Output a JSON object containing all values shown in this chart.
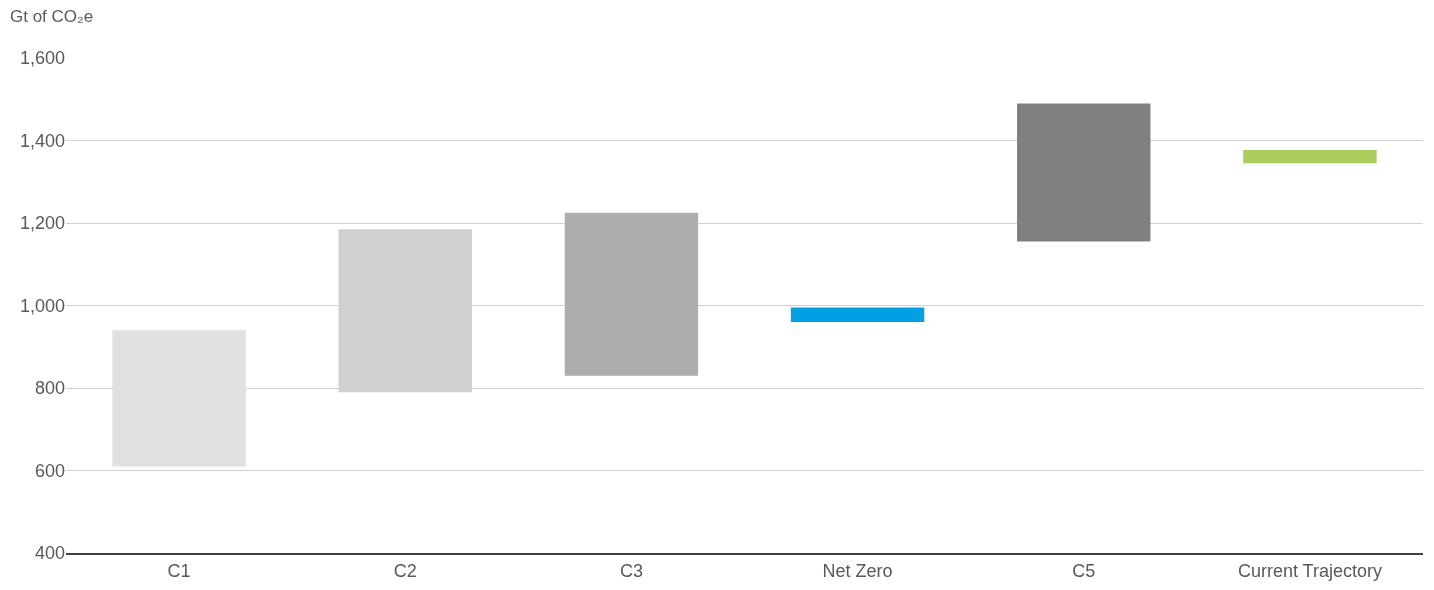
{
  "chart_data": {
    "type": "bar",
    "ylabel": "Gt of CO₂e",
    "categories": [
      "C1",
      "C2",
      "C3",
      "Net Zero",
      "C5",
      "Current Trajectory"
    ],
    "base": [
      610,
      790,
      830,
      960,
      1155,
      1345
    ],
    "values": [
      330,
      395,
      395,
      35,
      335,
      32
    ],
    "colors": [
      "#e0e0df",
      "#d0d0d0",
      "#adadad",
      "#00a0e3",
      "#808080",
      "#a9cc5c"
    ],
    "ylim": [
      400,
      1600
    ],
    "yticks": [
      400,
      600,
      800,
      {
        "value": 1000,
        "label": "1,000"
      },
      {
        "value": 1200,
        "label": "1,200"
      },
      {
        "value": 1400,
        "label": "1,400"
      },
      {
        "value": 1600,
        "label": "1,600"
      }
    ],
    "grid": "y"
  }
}
